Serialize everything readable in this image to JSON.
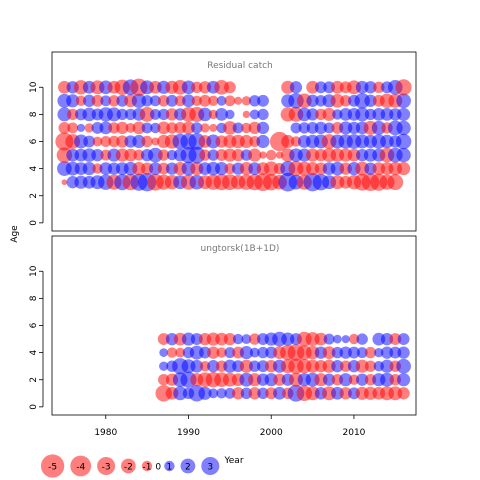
{
  "chart_data": {
    "type": "scatter",
    "encoding": "bubble",
    "colors": {
      "negative": "#ff0000",
      "positive": "#0000ff",
      "opacity": 0.5
    },
    "x_axis": {
      "label": "Year",
      "range": [
        1973.5,
        2017.5
      ],
      "ticks": [
        1980,
        1990,
        2000,
        2010
      ]
    },
    "y_axis": {
      "label": "Age",
      "ticks": [
        0,
        2,
        4,
        6,
        8,
        10
      ]
    },
    "panels": [
      {
        "title": "Residual catch",
        "xlim": [
          1973.5,
          2017.5
        ],
        "ylim": [
          -0.6,
          12.6
        ],
        "years_start": 1975,
        "years_end": 2016,
        "ages": [
          3,
          4,
          5,
          6,
          7,
          8,
          9,
          10
        ],
        "residuals": {
          "3": [
            -0.3,
            1.4,
            1.6,
            1.5,
            1.8,
            2.2,
            -2.1,
            2.4,
            -2.4,
            2.7,
            3.1,
            -2.6,
            -2.1,
            -1.9,
            1.8,
            -2.1,
            2.0,
            -1.8,
            -2.2,
            -2.4,
            -2.3,
            -1.9,
            -2.2,
            -2.4,
            -2.9,
            -2.5,
            -2.0,
            3.2,
            2.0,
            -2.1,
            3.1,
            2.5,
            1.8,
            -1.8,
            -1.5,
            -1.9,
            -2.6,
            -2.9,
            -2.7,
            -2.1,
            -2.3,
            0
          ],
          "4": [
            2.0,
            1.8,
            1.5,
            1.6,
            -1.0,
            1.5,
            1.4,
            1.5,
            1.7,
            -1.6,
            -1.4,
            1.5,
            -1.3,
            1.4,
            -1.6,
            1.8,
            -1.6,
            1.5,
            1.7,
            1.6,
            -1.1,
            1.4,
            -1.6,
            1.5,
            -1.5,
            -1.9,
            -1.2,
            2.1,
            -2.1,
            -1.8,
            -1.6,
            -1.4,
            1.5,
            1.7,
            -1.4,
            1.6,
            -1.8,
            1.4,
            -1.5,
            -1.5,
            -1.7,
            -1.6
          ],
          "5": [
            -2.2,
            1.5,
            1.5,
            1.7,
            1.4,
            -1.1,
            1.6,
            -1.6,
            -1.5,
            -1.1,
            1.4,
            2.0,
            -1.2,
            1.0,
            1.5,
            2.4,
            2.6,
            -1.2,
            1.2,
            -1.3,
            -1.6,
            -1.4,
            1.2,
            -1.6,
            -0.5,
            -1.0,
            -0.5,
            -1.7,
            1.7,
            1.6,
            -1.6,
            -1.4,
            -1.8,
            -1.7,
            -1.6,
            -1.5,
            1.4,
            1.6,
            1.6,
            -2.0,
            2.0,
            1.9
          ],
          "6": [
            -3.0,
            -2.0,
            1.8,
            1.3,
            -0.9,
            -1.1,
            -1.2,
            -1.4,
            1.4,
            1.6,
            -1.2,
            -0.6,
            -1.6,
            -1.9,
            2.2,
            2.4,
            2.6,
            -1.5,
            1.8,
            -1.4,
            -1.6,
            -1.7,
            -1.6,
            -1.1,
            1.6,
            0,
            -3.4,
            -1.6,
            -1.0,
            1.5,
            1.7,
            1.8,
            -2.0,
            1.8,
            1.9,
            2.0,
            1.8,
            1.6,
            1.9,
            1.7,
            1.4,
            2.2
          ],
          "7": [
            -1.3,
            -1.1,
            0.6,
            -0.8,
            1.3,
            1.5,
            -1.2,
            -1.4,
            -0.9,
            -1.5,
            1.1,
            1.0,
            -1.5,
            -1.2,
            -1.3,
            -1.5,
            1.2,
            -0.8,
            -0.6,
            1.0,
            -1.7,
            1.1,
            -1.0,
            -1.4,
            1.4,
            0,
            0,
            0,
            1.1,
            1.2,
            1.3,
            1.4,
            1.1,
            -1.3,
            1.6,
            1.4,
            1.5,
            -1.8,
            1.8,
            -1.2,
            2.0,
            1.9
          ],
          "8": [
            1.8,
            -1.2,
            1.3,
            1.7,
            1.3,
            1.9,
            1.8,
            1.2,
            1.2,
            1.5,
            -2.0,
            1.1,
            1.2,
            -1.4,
            1.4,
            -2.0,
            -2.1,
            1.7,
            -0.8,
            1.5,
            0.8,
            0,
            -0.5,
            0.9,
            1.2,
            0,
            0,
            -1.9,
            -2.0,
            1.7,
            1.4,
            -1.2,
            -1.6,
            1.0,
            1.5,
            1.5,
            1.8,
            1.2,
            1.5,
            1.5,
            1.4,
            1.6
          ],
          "9": [
            1.8,
            1.6,
            -1.0,
            1.4,
            -1.3,
            1.1,
            -1.2,
            1.3,
            -1.5,
            1.9,
            1.2,
            1.1,
            -1.2,
            1.3,
            -1.1,
            1.5,
            -1.0,
            -1.3,
            -1.0,
            0.9,
            -1.1,
            -0.6,
            -0.8,
            1.2,
            1.3,
            0,
            0,
            1.6,
            2.2,
            -2.0,
            1.4,
            1.2,
            1.6,
            -1.7,
            -1.2,
            1.3,
            2.2,
            1.4,
            -1.3,
            -1.9,
            -1.8,
            2.0
          ],
          "10": [
            -1.5,
            1.4,
            -1.9,
            1.5,
            -1.8,
            1.7,
            -1.5,
            -2.2,
            2.3,
            -2.8,
            1.8,
            -1.5,
            1.6,
            -1.6,
            -2.0,
            1.7,
            -1.2,
            -1.4,
            1.5,
            -2.0,
            -1.3,
            0,
            0,
            0,
            0,
            0,
            0,
            -1.6,
            1.4,
            0,
            -1.5,
            1.3,
            1.3,
            -1.5,
            -1.3,
            -1.8,
            1.5,
            1.4,
            -1.2,
            1.3,
            2.0,
            -2.4
          ]
        }
      },
      {
        "title": "ungtorsk(1B+1D)",
        "xlim": [
          1973.5,
          2017.5
        ],
        "ylim": [
          -0.6,
          12.6
        ],
        "years_start": 1987,
        "years_end": 2016,
        "ages": [
          1,
          2,
          3,
          4,
          5
        ],
        "residuals": {
          "1": [
            -2.5,
            -1.5,
            1.8,
            1.2,
            2.5,
            1.6,
            0.9,
            1.0,
            1.1,
            -1.4,
            1.2,
            -1.4,
            1.2,
            -1.3,
            1.5,
            -1.2,
            2.6,
            -2.2,
            -1.8,
            1.4,
            -1.8,
            1.5,
            -1.4,
            1.3,
            -1.6,
            -1.6,
            -1.5,
            -1.8,
            -1.8,
            -1.4
          ],
          "2": [
            -1.2,
            -1.4,
            2.0,
            2.4,
            -1.6,
            -2.0,
            -2.2,
            -2.0,
            -1.8,
            -1.5,
            1.8,
            -1.6,
            1.4,
            1.6,
            -1.4,
            1.4,
            -1.8,
            1.6,
            1.8,
            -1.6,
            1.4,
            -1.2,
            1.6,
            -1.0,
            1.4,
            -1.2,
            1.6,
            1.8,
            -1.2,
            1.6
          ],
          "3": [
            0.8,
            1.2,
            2.4,
            1.8,
            1.5,
            -1.0,
            1.4,
            -1.2,
            1.6,
            1.3,
            -1.6,
            1.2,
            1.3,
            -1.4,
            1.6,
            -1.8,
            -2.2,
            -1.9,
            -1.6,
            -1.4,
            -1.6,
            1.4,
            -1.2,
            1.4,
            -1.6,
            -1.2,
            1.0,
            1.6,
            -1.2,
            2.0
          ],
          "4": [
            0.7,
            -1.0,
            -0.9,
            1.2,
            1.8,
            1.3,
            -1.4,
            -1.0,
            1.1,
            -1.3,
            1.6,
            0.9,
            1.2,
            1.3,
            -1.5,
            -2.2,
            -2.6,
            -2.0,
            -1.7,
            1.4,
            -1.5,
            1.2,
            1.4,
            1.3,
            1.1,
            -1.2,
            0.8,
            1.4,
            1.3,
            1.4
          ],
          "5": [
            -1.3,
            1.4,
            -1.5,
            1.6,
            1.3,
            -1.4,
            -1.6,
            -1.5,
            -1.4,
            1.0,
            0.9,
            -1.2,
            1.3,
            1.6,
            2.0,
            1.6,
            1.3,
            -2.0,
            -1.8,
            -1.5,
            1.1,
            0.7,
            0.6,
            -1.0,
            1.2,
            0,
            1.5,
            1.4,
            -1.3,
            1.3
          ]
        }
      }
    ],
    "legend": {
      "placement": "bottom-left",
      "values": [
        -5,
        -4,
        -3,
        -2,
        -1,
        0,
        1,
        2,
        3
      ]
    }
  }
}
